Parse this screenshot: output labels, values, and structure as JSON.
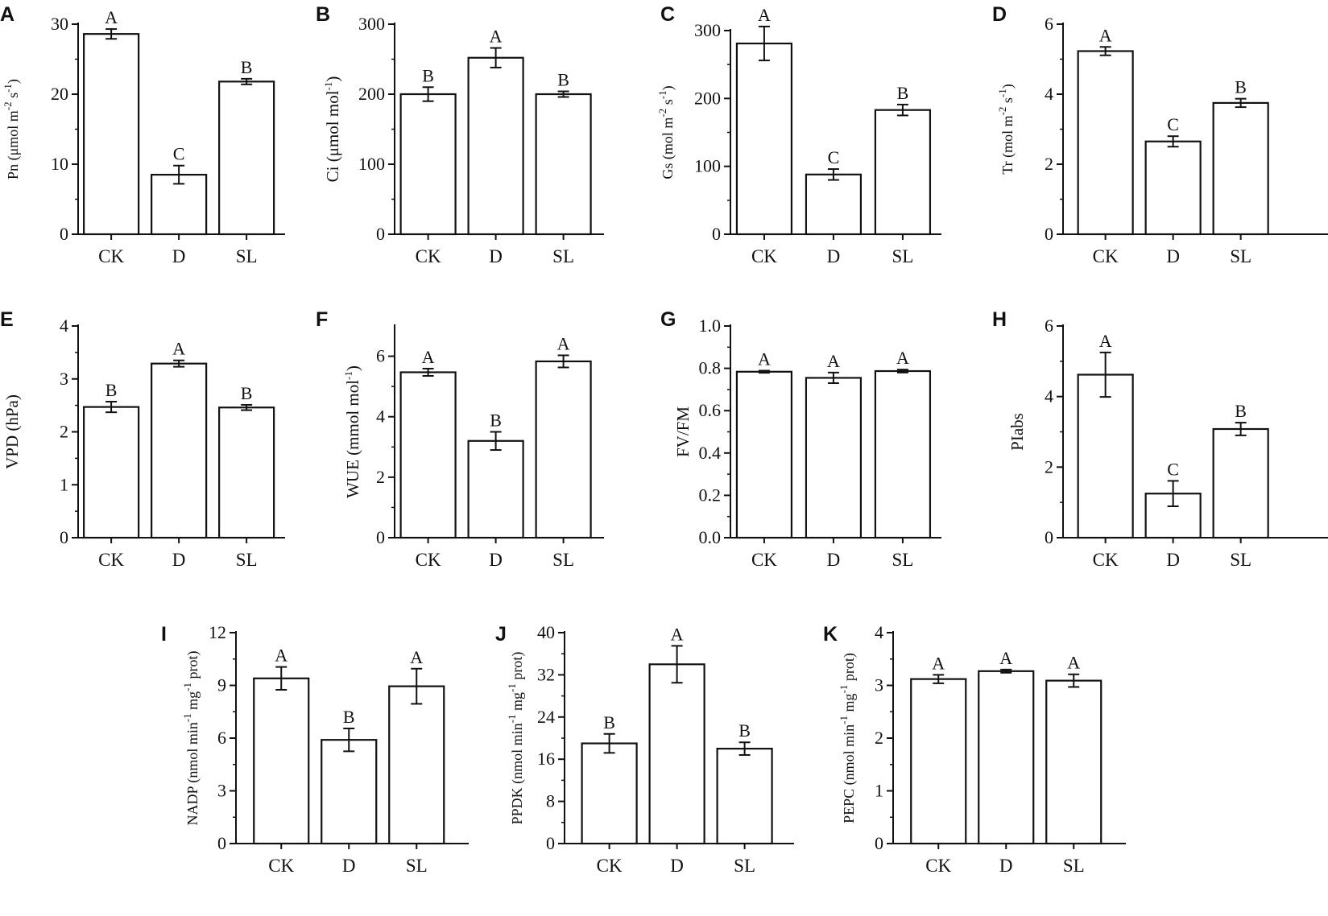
{
  "chart_data": [
    {
      "panel": "A",
      "type": "bar",
      "ylabel": [
        {
          "t": "Pn (μmol m"
        },
        {
          "t": "-2",
          "sup": true
        },
        {
          "t": " s"
        },
        {
          "t": "-1",
          "sup": true
        },
        {
          "t": ")"
        }
      ],
      "categories": [
        "CK",
        "D",
        "SL"
      ],
      "values": [
        28.6,
        8.5,
        21.8
      ],
      "errors": [
        0.7,
        1.3,
        0.4
      ],
      "letters": [
        "A",
        "C",
        "B"
      ],
      "ylim": [
        0,
        30
      ],
      "ticks": [
        0,
        10,
        20,
        30
      ],
      "tick_labels": [
        "0",
        "10",
        "20",
        "30"
      ]
    },
    {
      "panel": "B",
      "type": "bar",
      "ylabel": [
        {
          "t": "Ci (μmol mol"
        },
        {
          "t": "-1",
          "sup": true
        },
        {
          "t": ")"
        }
      ],
      "categories": [
        "CK",
        "D",
        "SL"
      ],
      "values": [
        200,
        252,
        200
      ],
      "errors": [
        10,
        14,
        4
      ],
      "letters": [
        "B",
        "A",
        "B"
      ],
      "ylim": [
        0,
        300
      ],
      "ticks": [
        0,
        100,
        200,
        300
      ],
      "tick_labels": [
        "0",
        "100",
        "200",
        "300"
      ]
    },
    {
      "panel": "C",
      "type": "bar",
      "ylabel": [
        {
          "t": "Gs (mol m"
        },
        {
          "t": "-2",
          "sup": true
        },
        {
          "t": " s"
        },
        {
          "t": "-1",
          "sup": true
        },
        {
          "t": ")"
        }
      ],
      "categories": [
        "CK",
        "D",
        "SL"
      ],
      "values": [
        281,
        88,
        183
      ],
      "errors": [
        25,
        8,
        8
      ],
      "letters": [
        "A",
        "C",
        "B"
      ],
      "ylim": [
        0,
        300
      ],
      "ticks": [
        0,
        100,
        200,
        300
      ],
      "tick_labels": [
        "0",
        "100",
        "200",
        "300"
      ]
    },
    {
      "panel": "D",
      "type": "bar",
      "ylabel": [
        {
          "t": "Tr (mol m"
        },
        {
          "t": "-2",
          "sup": true
        },
        {
          "t": " s"
        },
        {
          "t": "-1",
          "sup": true
        },
        {
          "t": ")"
        }
      ],
      "categories": [
        "CK",
        "D",
        "SL"
      ],
      "values": [
        5.23,
        2.65,
        3.75
      ],
      "errors": [
        0.12,
        0.15,
        0.12
      ],
      "letters": [
        "A",
        "C",
        "B"
      ],
      "ylim": [
        0,
        6
      ],
      "ticks": [
        0,
        2,
        4,
        6
      ],
      "tick_labels": [
        "0",
        "2",
        "4",
        "6"
      ]
    },
    {
      "panel": "E",
      "type": "bar",
      "ylabel": [
        {
          "t": "VPD (hPa)"
        }
      ],
      "categories": [
        "CK",
        "D",
        "SL"
      ],
      "values": [
        2.47,
        3.29,
        2.46
      ],
      "errors": [
        0.1,
        0.06,
        0.05
      ],
      "letters": [
        "B",
        "A",
        "B"
      ],
      "ylim": [
        0,
        4
      ],
      "ticks": [
        0,
        1,
        2,
        3,
        4
      ],
      "tick_labels": [
        "0",
        "1",
        "2",
        "3",
        "4"
      ]
    },
    {
      "panel": "F",
      "type": "bar",
      "ylabel": [
        {
          "t": "WUE (mmol mol"
        },
        {
          "t": "-1",
          "sup": true
        },
        {
          "t": ")"
        }
      ],
      "categories": [
        "CK",
        "D",
        "SL"
      ],
      "values": [
        5.47,
        3.2,
        5.83
      ],
      "errors": [
        0.12,
        0.3,
        0.2
      ],
      "letters": [
        "A",
        "B",
        "A"
      ],
      "ylim": [
        0,
        7
      ],
      "ticks": [
        0,
        2,
        4,
        6
      ],
      "tick_labels": [
        "0",
        "2",
        "4",
        "6"
      ]
    },
    {
      "panel": "G",
      "type": "bar",
      "ylabel": [
        {
          "t": "FV/FM"
        }
      ],
      "categories": [
        "CK",
        "D",
        "SL"
      ],
      "values": [
        0.784,
        0.755,
        0.787
      ],
      "errors": [
        0.005,
        0.025,
        0.007
      ],
      "letters": [
        "A",
        "A",
        "A"
      ],
      "ylim": [
        0,
        1.0
      ],
      "ticks": [
        0,
        0.2,
        0.4,
        0.6,
        0.8,
        1.0
      ],
      "tick_labels": [
        "0.0",
        "0.2",
        "0.4",
        "0.6",
        "0.8",
        "1.0"
      ]
    },
    {
      "panel": "H",
      "type": "bar",
      "ylabel": [
        {
          "t": "PIabs"
        }
      ],
      "categories": [
        "CK",
        "D",
        "SL"
      ],
      "values": [
        4.62,
        1.25,
        3.08
      ],
      "errors": [
        0.63,
        0.36,
        0.18
      ],
      "letters": [
        "A",
        "C",
        "B"
      ],
      "ylim": [
        0,
        6
      ],
      "ticks": [
        0,
        2,
        4,
        6
      ],
      "tick_labels": [
        "0",
        "2",
        "4",
        "6"
      ]
    },
    {
      "panel": "I",
      "type": "bar",
      "ylabel": [
        {
          "t": "NADP (nmol min"
        },
        {
          "t": "-1",
          "sup": true
        },
        {
          "t": " mg"
        },
        {
          "t": "-1",
          "sup": true
        },
        {
          "t": " prot)"
        }
      ],
      "categories": [
        "CK",
        "D",
        "SL"
      ],
      "values": [
        9.4,
        5.9,
        8.95
      ],
      "errors": [
        0.65,
        0.65,
        1.0
      ],
      "letters": [
        "A",
        "B",
        "A"
      ],
      "ylim": [
        0,
        12
      ],
      "ticks": [
        0,
        3,
        6,
        9,
        12
      ],
      "tick_labels": [
        "0",
        "3",
        "6",
        "9",
        "12"
      ]
    },
    {
      "panel": "J",
      "type": "bar",
      "ylabel": [
        {
          "t": "PPDK (nmol min"
        },
        {
          "t": "-1",
          "sup": true
        },
        {
          "t": " mg"
        },
        {
          "t": "-1",
          "sup": true
        },
        {
          "t": " prot)"
        }
      ],
      "categories": [
        "CK",
        "D",
        "SL"
      ],
      "values": [
        19,
        34,
        18
      ],
      "errors": [
        1.8,
        3.5,
        1.2
      ],
      "letters": [
        "B",
        "A",
        "B"
      ],
      "ylim": [
        0,
        40
      ],
      "ticks": [
        0,
        8,
        16,
        24,
        32,
        40
      ],
      "tick_labels": [
        "0",
        "8",
        "16",
        "24",
        "32",
        "40"
      ]
    },
    {
      "panel": "K",
      "type": "bar",
      "ylabel": [
        {
          "t": "PEPC (nmol min"
        },
        {
          "t": "-1",
          "sup": true
        },
        {
          "t": " mg"
        },
        {
          "t": "-1",
          "sup": true
        },
        {
          "t": " prot)"
        }
      ],
      "categories": [
        "CK",
        "D",
        "SL"
      ],
      "values": [
        3.12,
        3.27,
        3.09
      ],
      "errors": [
        0.08,
        0.03,
        0.12
      ],
      "letters": [
        "A",
        "A",
        "A"
      ],
      "ylim": [
        0,
        4
      ],
      "ticks": [
        0,
        1,
        2,
        3,
        4
      ],
      "tick_labels": [
        "0",
        "1",
        "2",
        "3",
        "4"
      ]
    }
  ]
}
